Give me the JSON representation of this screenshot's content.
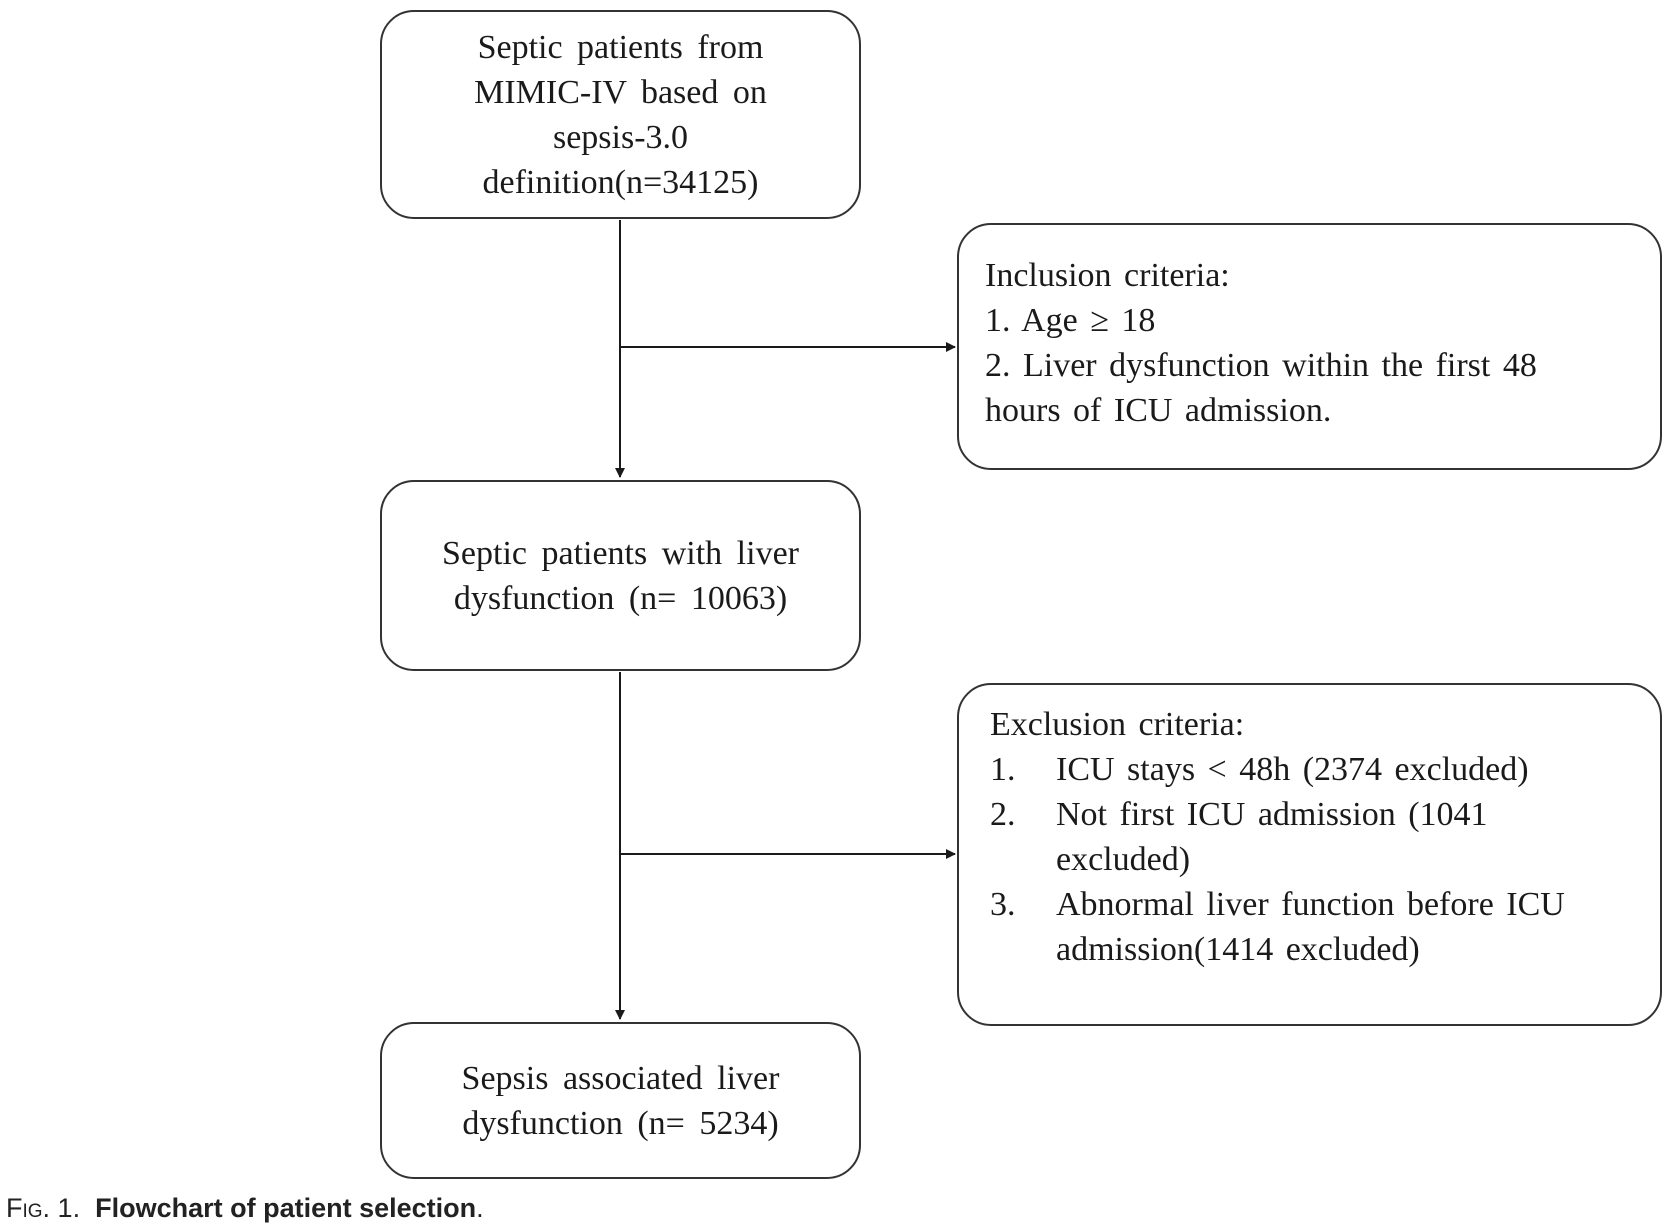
{
  "start_box": {
    "lines": [
      "Septic patients from",
      "MIMIC-IV based on",
      "sepsis-3.0",
      "definition(n=34125)"
    ]
  },
  "inclusion_box": {
    "heading": "Inclusion criteria:",
    "items": [
      "1. Age ≥ 18",
      "2. Liver dysfunction within the first 48",
      "hours of ICU admission."
    ]
  },
  "middle_box": {
    "lines": [
      "Septic patients with liver",
      "dysfunction (n= 10063)"
    ]
  },
  "exclusion_box": {
    "heading": "Exclusion criteria:",
    "items": [
      {
        "number": "1.",
        "lines": [
          "ICU stays < 48h (2374 excluded)"
        ]
      },
      {
        "number": "2.",
        "lines": [
          "Not first ICU admission (1041",
          "excluded)"
        ]
      },
      {
        "number": "3.",
        "lines": [
          "Abnormal liver function before ICU",
          "admission(1414 excluded)"
        ]
      }
    ]
  },
  "end_box": {
    "lines": [
      "Sepsis associated liver",
      "dysfunction (n= 5234)"
    ]
  },
  "caption": {
    "label": "Fig. 1.",
    "title": "Flowchart of patient selection",
    "end": "."
  },
  "colors": {
    "line": "#1a1a1a",
    "border": "#333333",
    "text": "#1a1a1a"
  }
}
